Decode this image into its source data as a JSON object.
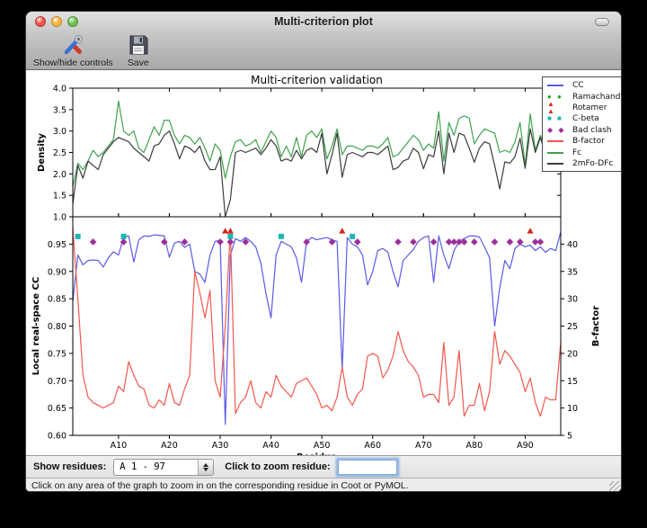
{
  "window": {
    "title": "Multi-criterion plot",
    "toolbar": {
      "show_hide_label": "Show/hide controls",
      "save_label": "Save"
    },
    "controls": {
      "show_residues_label": "Show residues:",
      "chain_select_value": "A  1 - 97",
      "zoom_label": "Click to zoom residue:",
      "zoom_input_value": ""
    },
    "status_text": "Click on any area of the graph to zoom in on the corresponding residue in Coot or PyMOL."
  },
  "chart_data": {
    "type": "line",
    "title": "Multi-criterion validation",
    "xlabel": "Residue",
    "x_range": [
      1,
      97
    ],
    "x_ticks": [
      [
        10,
        "A10"
      ],
      [
        20,
        "A20"
      ],
      [
        30,
        "A30"
      ],
      [
        40,
        "A40"
      ],
      [
        50,
        "A50"
      ],
      [
        60,
        "A60"
      ],
      [
        70,
        "A70"
      ],
      [
        80,
        "A80"
      ],
      [
        90,
        "A90"
      ]
    ],
    "top_plot": {
      "ylabel": "Density",
      "ylim": [
        1.0,
        4.0
      ],
      "yticks": [
        [
          1.0,
          "1.0"
        ],
        [
          1.5,
          "1.5"
        ],
        [
          2.0,
          "2.0"
        ],
        [
          2.5,
          "2.5"
        ],
        [
          3.0,
          "3.0"
        ],
        [
          3.5,
          "3.5"
        ],
        [
          4.0,
          "4.0"
        ]
      ],
      "series": [
        {
          "name": "Fc",
          "color": "#3fa24e",
          "values": [
            1.7,
            2.25,
            2.1,
            2.3,
            2.55,
            2.4,
            2.5,
            2.65,
            2.8,
            3.7,
            3.0,
            2.9,
            3.0,
            2.6,
            2.5,
            2.8,
            3.1,
            2.9,
            3.25,
            3.25,
            2.9,
            2.7,
            2.9,
            2.85,
            2.7,
            2.85,
            2.6,
            2.3,
            2.7,
            2.55,
            1.9,
            2.4,
            2.75,
            2.8,
            2.65,
            2.7,
            2.8,
            2.5,
            2.75,
            3.0,
            2.85,
            2.4,
            2.65,
            2.4,
            2.85,
            2.4,
            2.9,
            3.0,
            2.85,
            3.05,
            2.35,
            2.65,
            3.05,
            2.45,
            2.65,
            2.65,
            2.6,
            2.55,
            2.65,
            2.65,
            2.6,
            2.7,
            2.85,
            2.4,
            2.45,
            2.6,
            2.75,
            2.9,
            2.8,
            2.55,
            2.7,
            2.6,
            3.45,
            2.3,
            3.2,
            2.9,
            3.3,
            3.35,
            3.3,
            2.7,
            2.9,
            3.05,
            3.0,
            2.95,
            2.5,
            2.55,
            2.5,
            2.75,
            3.2,
            2.2,
            3.4,
            2.55,
            2.9,
            2.6,
            3.0,
            2.55,
            3.15
          ]
        },
        {
          "name": "2mFo-DFc",
          "color": "#3c3c3c",
          "values": [
            1.3,
            2.2,
            1.9,
            2.3,
            2.2,
            2.1,
            2.45,
            2.6,
            2.75,
            2.85,
            2.8,
            2.75,
            2.6,
            2.5,
            2.4,
            2.3,
            2.65,
            2.7,
            2.9,
            3.0,
            2.7,
            2.35,
            2.65,
            2.6,
            2.5,
            2.65,
            2.3,
            2.1,
            2.1,
            2.4,
            1.0,
            1.4,
            2.5,
            2.55,
            2.5,
            2.55,
            2.6,
            2.45,
            2.6,
            2.8,
            2.65,
            2.3,
            2.35,
            2.3,
            2.55,
            2.35,
            2.55,
            2.6,
            2.5,
            2.95,
            2.0,
            2.45,
            2.95,
            1.92,
            2.45,
            2.5,
            2.45,
            2.4,
            2.5,
            2.5,
            2.45,
            2.55,
            2.65,
            2.1,
            2.15,
            2.3,
            2.35,
            2.6,
            2.5,
            2.12,
            2.45,
            2.4,
            3.0,
            2.0,
            2.95,
            2.5,
            2.95,
            2.9,
            2.6,
            2.27,
            2.6,
            2.75,
            2.7,
            2.2,
            1.65,
            2.28,
            2.25,
            2.4,
            2.83,
            2.13,
            3.05,
            2.5,
            2.85,
            2.45,
            2.6,
            2.5,
            3.1
          ]
        }
      ]
    },
    "bottom_plot": {
      "ylabel_left": "Local real-space CC",
      "ylim_left": [
        0.6,
        1.0
      ],
      "yticks_left": [
        [
          0.6,
          "0.60"
        ],
        [
          0.65,
          "0.65"
        ],
        [
          0.7,
          "0.70"
        ],
        [
          0.75,
          "0.75"
        ],
        [
          0.8,
          "0.80"
        ],
        [
          0.85,
          "0.85"
        ],
        [
          0.9,
          "0.90"
        ],
        [
          0.95,
          "0.95"
        ]
      ],
      "ylabel_right": "B-factor",
      "ylim_right": [
        5,
        45
      ],
      "yticks_right": [
        [
          5,
          "5"
        ],
        [
          10,
          "10"
        ],
        [
          15,
          "15"
        ],
        [
          20,
          "20"
        ],
        [
          25,
          "25"
        ],
        [
          30,
          "30"
        ],
        [
          35,
          "35"
        ],
        [
          40,
          "40"
        ]
      ],
      "series": [
        {
          "name": "CC",
          "axis": "left",
          "color": "#5a5ae6",
          "values": [
            0.845,
            0.93,
            0.912,
            0.92,
            0.921,
            0.92,
            0.908,
            0.925,
            0.936,
            0.93,
            0.963,
            0.965,
            0.917,
            0.958,
            0.965,
            0.964,
            0.967,
            0.966,
            0.965,
            0.926,
            0.952,
            0.955,
            0.944,
            0.95,
            0.9,
            0.895,
            0.88,
            0.93,
            0.955,
            0.957,
            0.62,
            0.93,
            0.96,
            0.955,
            0.962,
            0.955,
            0.945,
            0.915,
            0.86,
            0.815,
            0.93,
            0.955,
            0.95,
            0.945,
            0.925,
            0.88,
            0.955,
            0.962,
            0.958,
            0.96,
            0.962,
            0.958,
            0.955,
            0.72,
            0.962,
            0.95,
            0.945,
            0.93,
            0.875,
            0.9,
            0.938,
            0.942,
            0.935,
            0.9,
            0.872,
            0.92,
            0.93,
            0.94,
            0.955,
            0.962,
            0.965,
            0.88,
            0.965,
            0.93,
            0.905,
            0.938,
            0.955,
            0.96,
            0.965,
            0.965,
            0.963,
            0.945,
            0.925,
            0.8,
            0.87,
            0.92,
            0.905,
            0.942,
            0.95,
            0.945,
            0.948,
            0.938,
            0.945,
            0.935,
            0.942,
            0.938,
            0.972
          ]
        },
        {
          "name": "B-factor",
          "axis": "right",
          "color": "#f4564d",
          "values": [
            43,
            30,
            16,
            12,
            11,
            10.5,
            10,
            10.5,
            11,
            14,
            13,
            18.5,
            16,
            14,
            13.5,
            10.5,
            10,
            11.5,
            10.5,
            14.5,
            11,
            10.5,
            13.5,
            16,
            35,
            31,
            26.5,
            31.5,
            15,
            12,
            25,
            42.5,
            9,
            11,
            12,
            15,
            11,
            10,
            13,
            12,
            16,
            14,
            13,
            12,
            14.5,
            15,
            15.5,
            14,
            12.5,
            10,
            10.5,
            9.5,
            12,
            17.5,
            12,
            10.5,
            12.5,
            13.5,
            19.5,
            20,
            19.5,
            15.5,
            17,
            19.5,
            24,
            20.5,
            18.5,
            17.5,
            16,
            12,
            12.5,
            12.5,
            11,
            22,
            10.5,
            12,
            20.5,
            8.5,
            10.5,
            10.5,
            14.5,
            9.5,
            13,
            24,
            18,
            20.5,
            19.5,
            18,
            16.5,
            13,
            15.5,
            11,
            8.5,
            12,
            11.5,
            11.5,
            22
          ]
        }
      ],
      "outlier_markers": [
        {
          "name": "Ramachandran",
          "shape": "circle",
          "color": "#1fa51f",
          "row_cc": 0.984,
          "residues": []
        },
        {
          "name": "Rotamer",
          "shape": "triangle",
          "color": "#d6281e",
          "row_cc": 0.974,
          "residues": [
            31,
            32,
            54,
            91
          ]
        },
        {
          "name": "C-beta",
          "shape": "square",
          "color": "#1fb5b5",
          "row_cc": 0.964,
          "residues": [
            2,
            11,
            32,
            42,
            56
          ]
        },
        {
          "name": "Bad clash",
          "shape": "diamond",
          "color": "#9c2f9c",
          "row_cc": 0.954,
          "residues": [
            5,
            11,
            19,
            23,
            30,
            32,
            35,
            47,
            52,
            57,
            65,
            68,
            72,
            75,
            76,
            77,
            78,
            80,
            84,
            87,
            89,
            92,
            93
          ]
        }
      ]
    },
    "legend": {
      "position": "upper right",
      "entries": [
        {
          "label": "CC",
          "glyph": "line",
          "color": "#5a5ae6"
        },
        {
          "label": "Ramachandran",
          "glyph": "circle",
          "color": "#1fa51f"
        },
        {
          "label": "Rotamer",
          "glyph": "triangle",
          "color": "#d6281e"
        },
        {
          "label": "C-beta",
          "glyph": "square",
          "color": "#1fb5b5"
        },
        {
          "label": "Bad clash",
          "glyph": "diamond",
          "color": "#9c2f9c"
        },
        {
          "label": "B-factor",
          "glyph": "line",
          "color": "#f4564d"
        },
        {
          "label": "Fc",
          "glyph": "line",
          "color": "#3fa24e"
        },
        {
          "label": "2mFo-DFc",
          "glyph": "line",
          "color": "#3c3c3c"
        }
      ]
    }
  }
}
